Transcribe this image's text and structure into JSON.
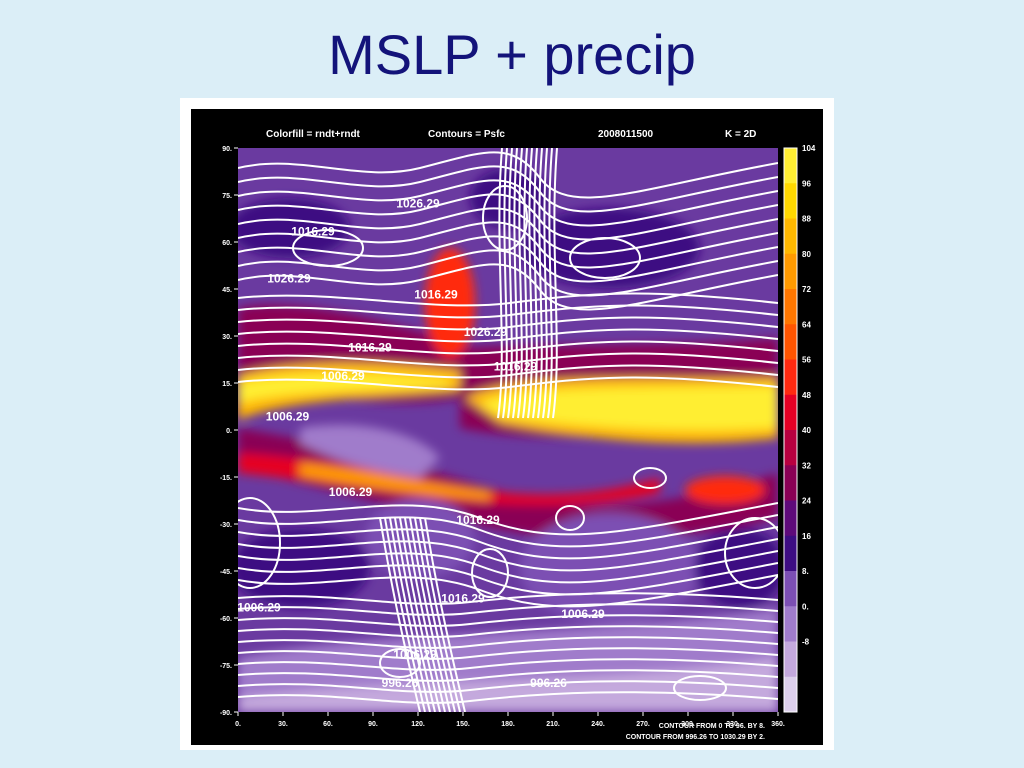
{
  "slide": {
    "title": "MSLP + precip"
  },
  "chart_data": {
    "type": "heatmap",
    "header": {
      "colorfill": "Colorfill = rndt+rndt",
      "contours": "Contours = Psfc",
      "date": "2008011500",
      "level": "K = 2D"
    },
    "x_ticks": [
      "0.",
      "30.",
      "60.",
      "90.",
      "120.",
      "150.",
      "180.",
      "210.",
      "240.",
      "270.",
      "300.",
      "330.",
      "360."
    ],
    "y_ticks": [
      "90.",
      "75.",
      "60.",
      "45.",
      "30.",
      "15.",
      "0.",
      "-15.",
      "-30.",
      "-45.",
      "-60.",
      "-75.",
      "-90."
    ],
    "xlim": [
      0,
      360
    ],
    "ylim": [
      -90,
      90
    ],
    "colorbar": {
      "labels": [
        "104",
        "96",
        "88",
        "80",
        "72",
        "64",
        "56",
        "48",
        "40",
        "32",
        "24",
        "16",
        "8.",
        "0.",
        "-8"
      ],
      "colors": [
        "#ffee33",
        "#ffd800",
        "#ffb800",
        "#ff9a00",
        "#ff7700",
        "#ff5500",
        "#ff2a10",
        "#e60024",
        "#b80040",
        "#8a0055",
        "#5e0a7a",
        "#3d0d82",
        "#7c4fb3",
        "#a07ccb",
        "#c4a9dd",
        "#ddd0ec"
      ]
    },
    "contour_labels": [
      {
        "text": "1026.29",
        "lon": 120,
        "lat": 71
      },
      {
        "text": "1016.29",
        "lon": 50,
        "lat": 62
      },
      {
        "text": "1026.29",
        "lon": 34,
        "lat": 47
      },
      {
        "text": "1016.29",
        "lon": 132,
        "lat": 42
      },
      {
        "text": "1026.29",
        "lon": 165,
        "lat": 30
      },
      {
        "text": "1016.29",
        "lon": 88,
        "lat": 25
      },
      {
        "text": "1016.29",
        "lon": 185,
        "lat": 19
      },
      {
        "text": "1006.29",
        "lon": 70,
        "lat": 16
      },
      {
        "text": "1006.29",
        "lon": 33,
        "lat": 3
      },
      {
        "text": "1006.29",
        "lon": 75,
        "lat": -21
      },
      {
        "text": "1016.29",
        "lon": 160,
        "lat": -30
      },
      {
        "text": "1006.29",
        "lon": 14,
        "lat": -58
      },
      {
        "text": "1016.29",
        "lon": 150,
        "lat": -55
      },
      {
        "text": "1006.29",
        "lon": 230,
        "lat": -60
      },
      {
        "text": "1006.29",
        "lon": 118,
        "lat": -73
      },
      {
        "text": "996.26",
        "lon": 108,
        "lat": -82
      },
      {
        "text": "996.26",
        "lon": 207,
        "lat": -82
      }
    ],
    "footer": [
      "CONTOUR FROM 0 TO 96. BY 8.",
      "CONTOUR FROM 996.26 TO 1030.29 BY 2."
    ]
  }
}
